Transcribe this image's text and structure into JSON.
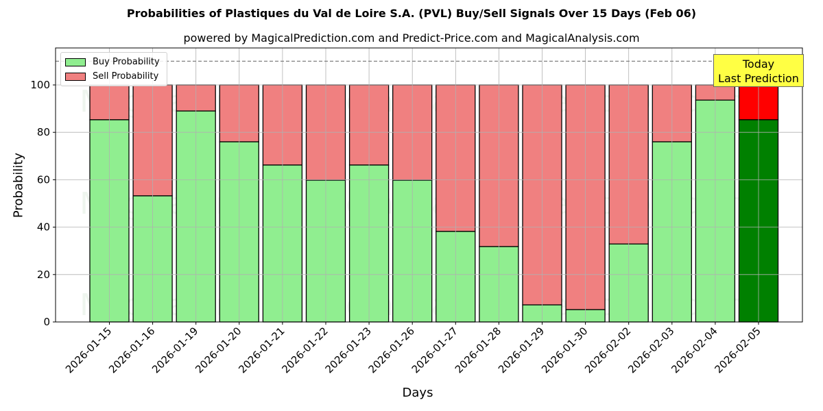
{
  "title": "Probabilities of Plastiques du Val de Loire S.A. (PVL) Buy/Sell Signals Over 15 Days (Feb 06)",
  "subtitle": "powered by MagicalPrediction.com and Predict-Price.com and MagicalAnalysis.com",
  "legend": {
    "buy_label": "Buy Probability",
    "sell_label": "Sell Probability"
  },
  "annotation": {
    "line1": "Today",
    "line2": "Last Prediction"
  },
  "watermarks": [
    "MagicalAnalysis.com",
    "MagicalPrediction.com"
  ],
  "colors": {
    "buy": "#90ee90",
    "sell": "#f08080",
    "today_buy": "#008000",
    "today_sell": "#ff0000",
    "annotation_bg": "#ffff44"
  },
  "chart_data": {
    "type": "bar",
    "stacked": true,
    "title": "Probabilities of Plastiques du Val de Loire S.A. (PVL) Buy/Sell Signals Over 15 Days (Feb 06)",
    "subtitle": "powered by MagicalPrediction.com and Predict-Price.com and MagicalAnalysis.com",
    "xlabel": "Days",
    "ylabel": "Probability",
    "ylim": [
      0,
      115
    ],
    "yticks": [
      0,
      20,
      40,
      60,
      80,
      100
    ],
    "grid": true,
    "reference_line": 110,
    "legend_position": "upper left",
    "categories": [
      "2026-01-15",
      "2026-01-16",
      "2026-01-19",
      "2026-01-20",
      "2026-01-21",
      "2026-01-22",
      "2026-01-23",
      "2026-01-26",
      "2026-01-27",
      "2026-01-28",
      "2026-01-29",
      "2026-01-30",
      "2026-02-02",
      "2026-02-03",
      "2026-02-04",
      "2026-02-05"
    ],
    "series": [
      {
        "name": "Buy Probability",
        "values": [
          85.3,
          53.2,
          89.0,
          76.0,
          66.2,
          59.8,
          66.2,
          59.8,
          38.2,
          31.8,
          7.2,
          5.2,
          32.9,
          76.0,
          93.6,
          85.3
        ]
      },
      {
        "name": "Sell Probability",
        "values": [
          14.7,
          46.8,
          11.0,
          24.0,
          33.8,
          40.2,
          33.8,
          40.2,
          61.8,
          68.2,
          92.8,
          94.8,
          67.1,
          24.0,
          6.4,
          14.7
        ]
      }
    ],
    "highlight_last": true
  }
}
